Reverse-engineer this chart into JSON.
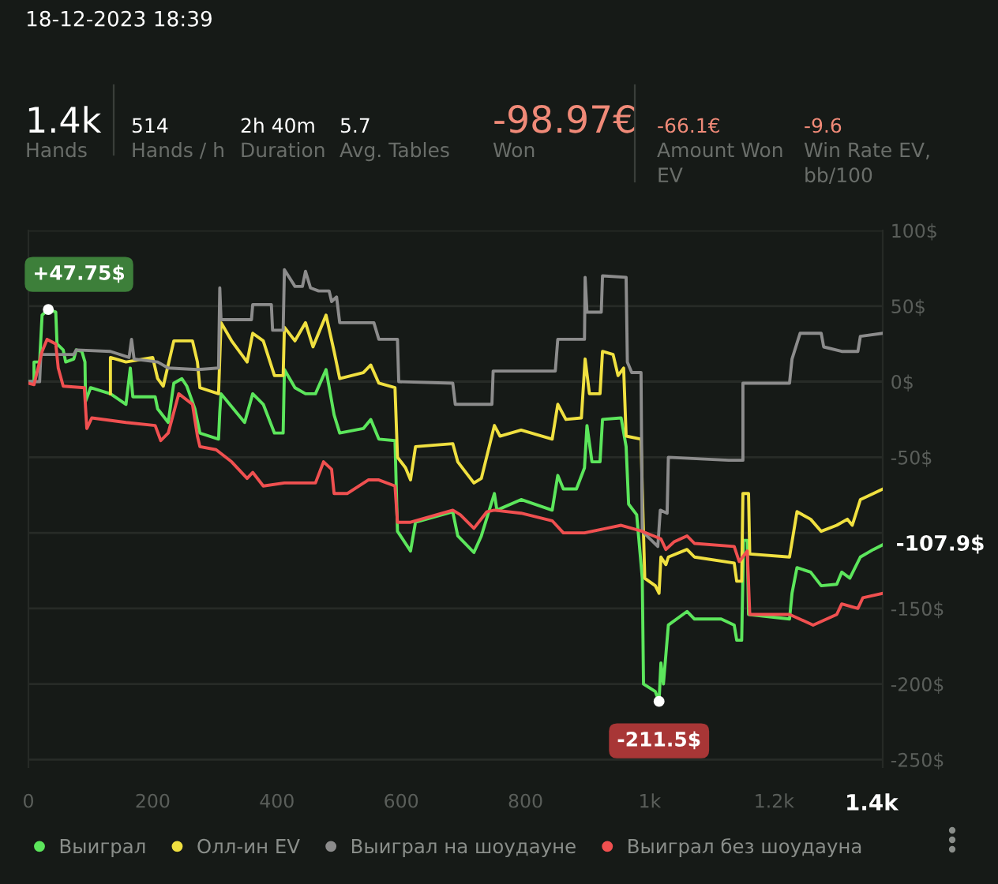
{
  "chart_data": {
    "type": "line",
    "title": "18-12-2023 18:39",
    "annotations": [
      "1.4k",
      "Hands",
      "514",
      "Hands / h",
      "2h 40m",
      "Duration",
      "5.7",
      "Avg. Tables",
      "-98.97€",
      "Won",
      "-66.1€",
      "Amount Won\nEV",
      "-9.6",
      "Win Rate EV,\nbb/100",
      {
        "text": "+47.75$",
        "x": 32,
        "y": 47.75
      },
      {
        "text": "-211.5$",
        "x": 1015,
        "y": -211.5
      },
      {
        "text": "-107.9$",
        "x": 1375,
        "y": -107.9
      }
    ],
    "series": [
      {
        "name": "Выиграл",
        "color": "#5ce65c",
        "x": [
          0,
          9,
          9,
          18,
          22,
          32,
          44,
          46,
          56,
          60,
          73,
          77,
          86,
          91,
          92,
          100,
          132,
          157,
          164,
          168,
          204,
          208,
          225,
          234,
          247,
          255,
          268,
          276,
          306,
          308,
          310,
          348,
          361,
          378,
          396,
          410,
          412,
          429,
          446,
          462,
          479,
          492,
          501,
          539,
          551,
          564,
          590,
          594,
          615,
          623,
          683,
          691,
          717,
          729,
          750,
          754,
          793,
          843,
          852,
          861,
          882,
          895,
          899,
          907,
          920,
          924,
          954,
          962,
          966,
          979,
          988,
          990,
          1009,
          1015,
          1018,
          1022,
          1030,
          1060,
          1072,
          1115,
          1136,
          1140,
          1148,
          1151,
          1157,
          1159,
          1225,
          1229,
          1237,
          1259,
          1276,
          1301,
          1309,
          1322,
          1339,
          1360,
          1375
        ],
        "values": [
          0,
          0,
          13,
          13,
          44,
          47.75,
          46,
          25,
          21,
          13,
          15,
          21,
          20,
          13,
          -13,
          -4,
          -8,
          -15,
          9,
          -10,
          -10,
          -18,
          -27,
          -1,
          2,
          -3,
          -18,
          -34,
          -38,
          -20,
          -8,
          -27,
          -8,
          -15,
          -34,
          -34,
          8,
          -4,
          -8,
          -8,
          8,
          -22,
          -34,
          -31,
          -25,
          -38,
          -39,
          -99,
          -112,
          -93,
          -86,
          -102,
          -113,
          -102,
          -74,
          -85,
          -78,
          -85,
          -62,
          -71,
          -71,
          -57,
          -29,
          -53,
          -53,
          -25,
          -24,
          -43,
          -81,
          -88,
          -130,
          -200,
          -205,
          -211.5,
          -186,
          -200,
          -161,
          -152,
          -157,
          -157,
          -161,
          -171,
          -171,
          -105,
          -105,
          -154,
          -157,
          -140,
          -123,
          -126,
          -135,
          -134,
          -126,
          -130,
          -116,
          -111,
          -107.9
        ]
      },
      {
        "name": "Олл-ин EV",
        "color": "#f0e040",
        "x": [
          132,
          132,
          157,
          200,
          208,
          217,
          234,
          264,
          272,
          276,
          306,
          310,
          327,
          352,
          361,
          378,
          396,
          410,
          412,
          429,
          446,
          458,
          479,
          492,
          501,
          539,
          551,
          564,
          590,
          594,
          607,
          615,
          623,
          683,
          691,
          717,
          729,
          750,
          759,
          793,
          843,
          852,
          865,
          890,
          896,
          903,
          920,
          924,
          941,
          949,
          958,
          962,
          986,
          988,
          992,
          1009,
          1015,
          1018,
          1026,
          1030,
          1060,
          1072,
          1136,
          1140,
          1148,
          1150,
          1159,
          1161,
          1225,
          1237,
          1259,
          1276,
          1301,
          1318,
          1326,
          1339,
          1360,
          1375
        ],
        "values": [
          -8,
          16,
          13,
          16,
          2,
          -3,
          27,
          27,
          13,
          -4,
          -8,
          39,
          27,
          13,
          32,
          27,
          4,
          4,
          36,
          27,
          39,
          23,
          44,
          20,
          2,
          6,
          11,
          -1,
          -4,
          -50,
          -57,
          -65,
          -43,
          -41,
          -53,
          -67,
          -64,
          -29,
          -36,
          -32,
          -38,
          -15,
          -25,
          -24,
          15,
          -8,
          -8,
          20,
          18,
          4,
          9,
          -36,
          -38,
          -71,
          -130,
          -135,
          -140,
          -116,
          -121,
          -116,
          -111,
          -116,
          -120,
          -132,
          -132,
          -74,
          -74,
          -114,
          -116,
          -86,
          -91,
          -99,
          -95,
          -91,
          -95,
          -78,
          -74,
          -71
        ]
      },
      {
        "name": "Выиграл на шоудауне",
        "color": "#8c8c8c",
        "x": [
          0,
          18,
          20,
          73,
          77,
          132,
          162,
          166,
          170,
          208,
          225,
          272,
          306,
          308,
          310,
          359,
          361,
          391,
          393,
          410,
          412,
          429,
          441,
          446,
          454,
          467,
          484,
          488,
          496,
          501,
          556,
          564,
          594,
          596,
          683,
          687,
          746,
          748,
          848,
          852,
          895,
          896,
          899,
          922,
          924,
          962,
          964,
          971,
          986,
          988,
          1013,
          1017,
          1028,
          1030,
          1127,
          1150,
          1150,
          1225,
          1229,
          1242,
          1276,
          1280,
          1309,
          1335,
          1339,
          1375
        ],
        "values": [
          0,
          0,
          18,
          18,
          21,
          20,
          16,
          28,
          15,
          13,
          9,
          8,
          9,
          62,
          41,
          41,
          51,
          51,
          34,
          34,
          74,
          63,
          63,
          73,
          62,
          60,
          60,
          53,
          56,
          39,
          39,
          28,
          28,
          0,
          -1,
          -15,
          -15,
          7,
          7,
          28,
          28,
          69,
          46,
          46,
          70,
          69,
          13,
          6,
          6,
          -99,
          -109,
          -85,
          -87,
          -50,
          -52,
          -52,
          -1,
          -1,
          15,
          32,
          32,
          23,
          20,
          20,
          30,
          32
        ]
      },
      {
        "name": "Выиграл без шоудауна",
        "color": "#f05050",
        "x": [
          0,
          9,
          22,
          30,
          44,
          48,
          56,
          90,
          94,
          102,
          157,
          204,
          213,
          225,
          242,
          264,
          272,
          276,
          302,
          327,
          352,
          361,
          378,
          412,
          462,
          475,
          488,
          492,
          513,
          547,
          564,
          590,
          594,
          615,
          683,
          695,
          717,
          738,
          750,
          793,
          843,
          861,
          895,
          954,
          988,
          1018,
          1026,
          1039,
          1060,
          1072,
          1136,
          1144,
          1157,
          1161,
          1225,
          1263,
          1301,
          1309,
          1335,
          1343,
          1375
        ],
        "values": [
          -1,
          -2,
          20,
          28,
          25,
          9,
          -3,
          -4,
          -31,
          -24,
          -27,
          -29,
          -39,
          -34,
          -8,
          -15,
          -36,
          -43,
          -45,
          -53,
          -64,
          -60,
          -69,
          -67,
          -67,
          -53,
          -58,
          -74,
          -74,
          -65,
          -65,
          -69,
          -93,
          -93,
          -85,
          -88,
          -97,
          -86,
          -85,
          -87,
          -92,
          -100,
          -100,
          -95,
          -99,
          -104,
          -111,
          -106,
          -102,
          -107,
          -109,
          -119,
          -112,
          -154,
          -154,
          -161,
          -154,
          -147,
          -150,
          -143,
          -140
        ]
      }
    ],
    "xlim": [
      0,
      1375
    ],
    "ylim": [
      -255,
      100
    ],
    "xticks": [
      0,
      200,
      400,
      600,
      800,
      {
        "value": 1000,
        "label": "1k"
      },
      {
        "value": 1200,
        "label": "1.2k"
      },
      {
        "value": 1357,
        "label": "1.4k"
      }
    ],
    "yticks": [
      {
        "value": 100,
        "label": "100$"
      },
      {
        "value": 50,
        "label": "50$"
      },
      {
        "value": 0,
        "label": "0$"
      },
      {
        "value": -50,
        "label": "-50$"
      },
      {
        "value": -100,
        "label": null
      },
      {
        "value": -150,
        "label": "-150$"
      },
      {
        "value": -200,
        "label": "-200$"
      },
      {
        "value": -250,
        "label": "-250$"
      }
    ],
    "grid": "y",
    "legend": "bottom",
    "marker": "none",
    "line_style": "solid"
  }
}
